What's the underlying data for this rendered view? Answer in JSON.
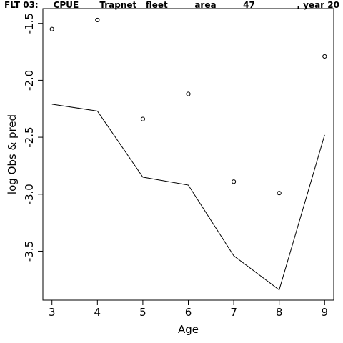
{
  "title": "FLT 03:     CPUE       Trapnet   fleet         area         47              , year 20",
  "chart_data": {
    "type": "scatter+line",
    "title": "FLT 03:     CPUE       Trapnet   fleet         area         47              , year 20",
    "xlabel": "Age",
    "ylabel": "log Obs & pred",
    "xlim": [
      2.8,
      9.2
    ],
    "ylim": [
      -3.93,
      -1.37
    ],
    "x_ticks": [
      3,
      4,
      5,
      6,
      7,
      8,
      9
    ],
    "y_ticks": [
      -1.5,
      -2.0,
      -2.5,
      -3.0,
      -3.5
    ],
    "y_tick_labels": [
      "-1.5",
      "-2.0",
      "-2.5",
      "-3.0",
      "-3.5"
    ],
    "grid": false,
    "series": [
      {
        "kind": "points",
        "marker": "open-circle",
        "x": [
          3,
          4,
          5,
          6,
          7,
          8,
          9
        ],
        "y": [
          -1.55,
          -1.47,
          -2.34,
          -2.12,
          -2.89,
          -2.99,
          -1.79
        ]
      },
      {
        "kind": "line",
        "x": [
          3,
          4,
          5,
          6,
          7,
          8,
          9
        ],
        "y": [
          -2.21,
          -2.27,
          -2.85,
          -2.92,
          -3.54,
          -3.84,
          -2.48
        ]
      }
    ]
  }
}
